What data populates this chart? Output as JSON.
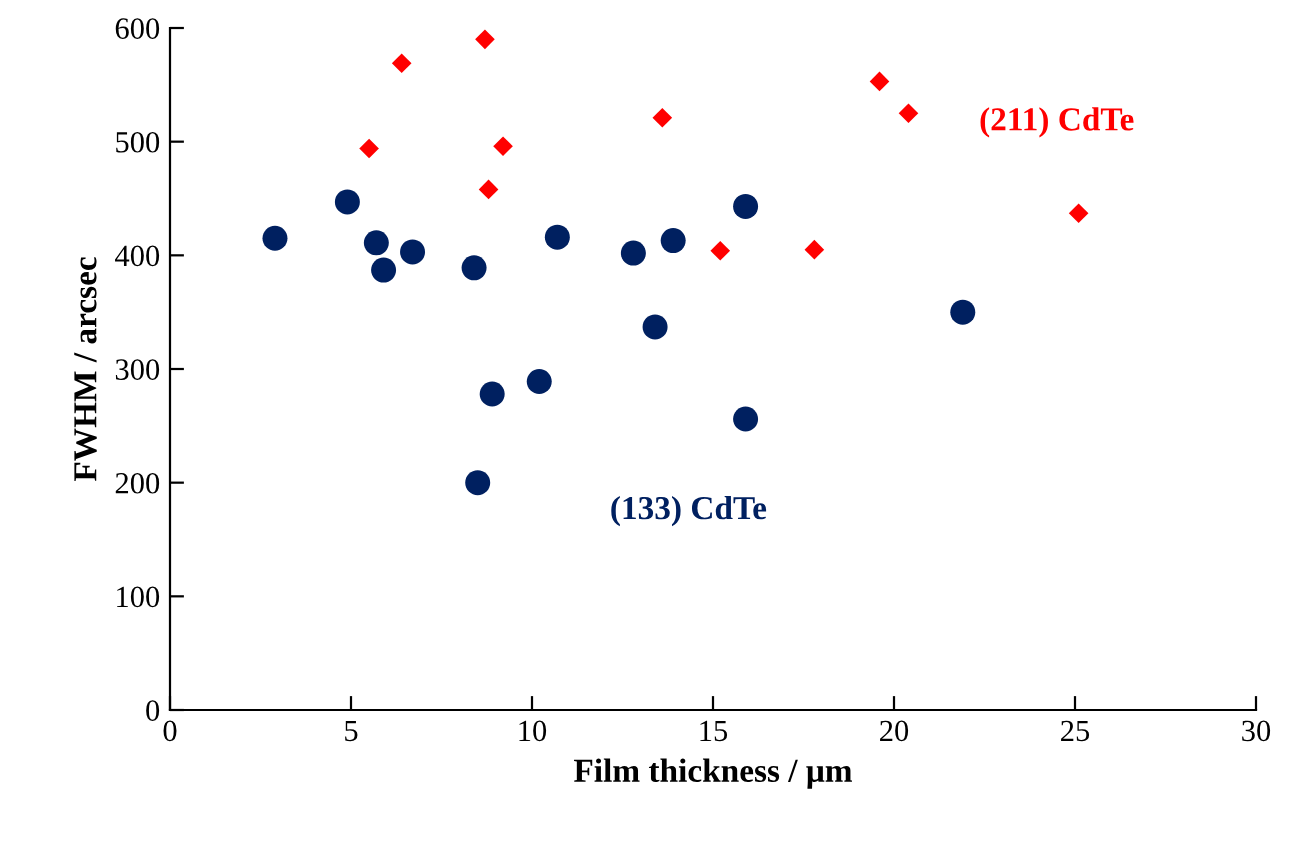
{
  "chart_data": {
    "type": "scatter",
    "xlabel": "Film thickness / μm",
    "ylabel": "FWHM / arcsec",
    "xlim": [
      0,
      30
    ],
    "xticks": [
      0,
      5,
      10,
      15,
      20,
      25,
      30
    ],
    "ylim": [
      0,
      600
    ],
    "yticks": [
      0,
      100,
      200,
      300,
      400,
      500,
      600
    ],
    "grid": false,
    "legend": false,
    "series": [
      {
        "name": "(133) CdTe",
        "color": "#002060",
        "marker": "circle",
        "x": [
          2.9,
          4.9,
          5.7,
          5.9,
          6.7,
          8.4,
          8.5,
          8.9,
          10.2,
          10.7,
          12.8,
          13.4,
          13.9,
          15.9,
          15.9,
          21.9
        ],
        "values": [
          415,
          447,
          411,
          387,
          403,
          389,
          200,
          278,
          289,
          416,
          402,
          337,
          413,
          443,
          256,
          350
        ]
      },
      {
        "name": "(211) CdTe",
        "color": "#ff0000",
        "marker": "diamond",
        "x": [
          5.5,
          6.4,
          8.7,
          8.8,
          9.2,
          13.6,
          15.2,
          17.8,
          19.6,
          20.4,
          25.1
        ],
        "values": [
          494,
          569,
          590,
          458,
          496,
          521,
          404,
          405,
          553,
          525,
          437
        ]
      }
    ]
  }
}
